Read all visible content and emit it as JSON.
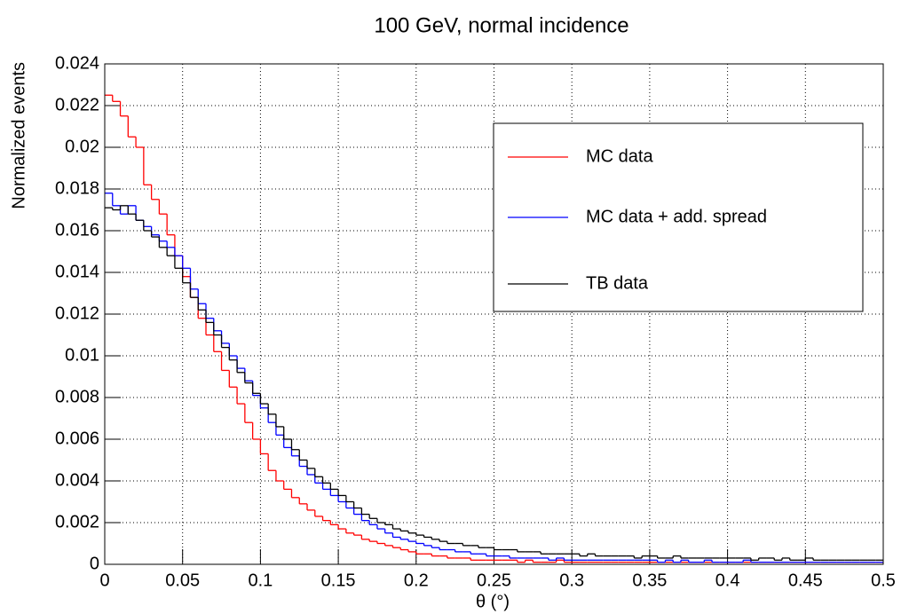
{
  "chart_data": {
    "type": "histogram",
    "title": "100 GeV, normal incidence",
    "x_label": "θ (°)",
    "y_label": "Normalized events",
    "xlim": [
      0,
      0.5
    ],
    "ylim": [
      0,
      0.024
    ],
    "xticks": [
      0,
      0.05,
      0.1,
      0.15,
      0.2,
      0.25,
      0.3,
      0.35,
      0.4,
      0.45,
      0.5
    ],
    "yticks": [
      0,
      0.002,
      0.004,
      0.006,
      0.008,
      0.01,
      0.012,
      0.014,
      0.016,
      0.018,
      0.02,
      0.022,
      0.024
    ],
    "grid": true,
    "legend": "upper right",
    "bins": [
      0,
      0.005,
      0.01,
      0.015,
      0.02,
      0.025,
      0.03,
      0.035,
      0.04,
      0.045,
      0.05,
      0.055,
      0.06,
      0.065,
      0.07,
      0.075,
      0.08,
      0.085,
      0.09,
      0.095,
      0.1,
      0.105,
      0.11,
      0.115,
      0.12,
      0.125,
      0.13,
      0.135,
      0.14,
      0.145,
      0.15,
      0.155,
      0.16,
      0.165,
      0.17,
      0.175,
      0.18,
      0.185,
      0.19,
      0.195,
      0.2,
      0.205,
      0.21,
      0.215,
      0.22,
      0.225,
      0.23,
      0.235,
      0.24,
      0.245,
      0.25,
      0.255,
      0.26,
      0.265,
      0.27,
      0.275,
      0.28,
      0.285,
      0.29,
      0.295,
      0.3,
      0.305,
      0.31,
      0.315,
      0.32,
      0.325,
      0.33,
      0.335,
      0.34,
      0.345,
      0.35,
      0.355,
      0.36,
      0.365,
      0.37,
      0.375,
      0.38,
      0.385,
      0.39,
      0.395,
      0.4,
      0.405,
      0.41,
      0.415,
      0.42,
      0.425,
      0.43,
      0.435,
      0.44,
      0.445,
      0.45,
      0.455,
      0.46,
      0.465,
      0.47,
      0.475,
      0.48,
      0.485,
      0.49,
      0.495,
      0.5
    ],
    "series": [
      {
        "name": "MC data",
        "color": "#ff0000",
        "values": [
          0.0225,
          0.0222,
          0.0215,
          0.0205,
          0.02,
          0.0182,
          0.0175,
          0.0168,
          0.0158,
          0.0148,
          0.0138,
          0.0128,
          0.0118,
          0.011,
          0.0102,
          0.0093,
          0.0085,
          0.0077,
          0.0068,
          0.006,
          0.0053,
          0.0045,
          0.004,
          0.0036,
          0.0032,
          0.0029,
          0.0026,
          0.0023,
          0.0021,
          0.0019,
          0.0017,
          0.0015,
          0.0014,
          0.0012,
          0.0011,
          0.001,
          0.0009,
          0.0008,
          0.0007,
          0.0006,
          0.0005,
          0.0005,
          0.0004,
          0.0004,
          0.0003,
          0.0003,
          0.0003,
          0.0002,
          0.0002,
          0.0002,
          0.0002,
          0.0002,
          0.0002,
          0.0001,
          0.0002,
          0.0001,
          0.0001,
          0.0001,
          0.0002,
          0.0001,
          0.0001,
          0.0001,
          0.0001,
          0.0001,
          0.0001,
          0.0001,
          0.0001,
          0.0001,
          0.0001,
          0.0001,
          0.0001,
          0.0001,
          0.0001,
          0.0001,
          0.0001,
          0.0001,
          0.0001,
          0.0001,
          0.0001,
          0.0001,
          0.0001,
          0.0001,
          0.0001,
          0.0001,
          0.0001,
          0.0001,
          0.0001,
          0.0001,
          0.0001,
          0.0001,
          0.0001,
          0.0001,
          0.0001,
          0.0001,
          0.0001,
          0.0001,
          0.0001,
          0.0001,
          0.0001,
          0.0001
        ]
      },
      {
        "name": "MC data + add. spread",
        "color": "#0000ff",
        "values": [
          0.0178,
          0.0172,
          0.0168,
          0.0172,
          0.0165,
          0.0162,
          0.0158,
          0.0155,
          0.0152,
          0.0148,
          0.0142,
          0.0132,
          0.0125,
          0.0118,
          0.0112,
          0.0106,
          0.01,
          0.0094,
          0.0088,
          0.0081,
          0.0075,
          0.0068,
          0.0062,
          0.0056,
          0.0052,
          0.0047,
          0.0043,
          0.0039,
          0.0036,
          0.0033,
          0.003,
          0.0027,
          0.0024,
          0.0021,
          0.0019,
          0.0017,
          0.0015,
          0.0013,
          0.0012,
          0.0011,
          0.001,
          0.0009,
          0.0008,
          0.0007,
          0.0007,
          0.0006,
          0.0006,
          0.0005,
          0.0005,
          0.0004,
          0.0004,
          0.0004,
          0.0003,
          0.0003,
          0.0003,
          0.0003,
          0.0003,
          0.0002,
          0.0003,
          0.0002,
          0.0002,
          0.0002,
          0.0002,
          0.0002,
          0.0002,
          0.0002,
          0.0002,
          0.0002,
          0.0002,
          0.0002,
          0.0002,
          0.0001,
          0.0002,
          0.0001,
          0.0002,
          0.0001,
          0.0001,
          0.0002,
          0.0001,
          0.0001,
          0.0001,
          0.0001,
          0.0002,
          0.0001,
          0.0001,
          0.0001,
          0.0001,
          0.0001,
          0.0001,
          0.0001,
          0.0001,
          0.0001,
          0.0001,
          0.0001,
          0.0001,
          0.0001,
          0.0001,
          0.0001,
          0.0001,
          0.0001
        ]
      },
      {
        "name": "TB data",
        "color": "#000000",
        "values": [
          0.0171,
          0.017,
          0.0172,
          0.0168,
          0.0165,
          0.016,
          0.0157,
          0.0152,
          0.0148,
          0.0142,
          0.0135,
          0.0128,
          0.0122,
          0.0116,
          0.011,
          0.0104,
          0.0098,
          0.0092,
          0.0087,
          0.0082,
          0.0077,
          0.0072,
          0.0066,
          0.006,
          0.0055,
          0.005,
          0.0046,
          0.0042,
          0.0039,
          0.0036,
          0.0033,
          0.003,
          0.0027,
          0.0024,
          0.0022,
          0.002,
          0.0019,
          0.0017,
          0.0016,
          0.0015,
          0.0014,
          0.0013,
          0.0012,
          0.0011,
          0.001,
          0.001,
          0.0009,
          0.0009,
          0.0008,
          0.0008,
          0.0007,
          0.0007,
          0.0007,
          0.0006,
          0.0006,
          0.0006,
          0.0005,
          0.0005,
          0.0005,
          0.0005,
          0.0005,
          0.0004,
          0.0005,
          0.0004,
          0.0004,
          0.0004,
          0.0004,
          0.0004,
          0.0003,
          0.0004,
          0.0004,
          0.0003,
          0.0003,
          0.0004,
          0.0003,
          0.0003,
          0.0003,
          0.0003,
          0.0003,
          0.0003,
          0.0003,
          0.0003,
          0.0003,
          0.0002,
          0.0003,
          0.0003,
          0.0002,
          0.0003,
          0.0002,
          0.0002,
          0.0003,
          0.0002,
          0.0002,
          0.0002,
          0.0002,
          0.0002,
          0.0002,
          0.0002,
          0.0002,
          0.0002
        ]
      }
    ]
  }
}
